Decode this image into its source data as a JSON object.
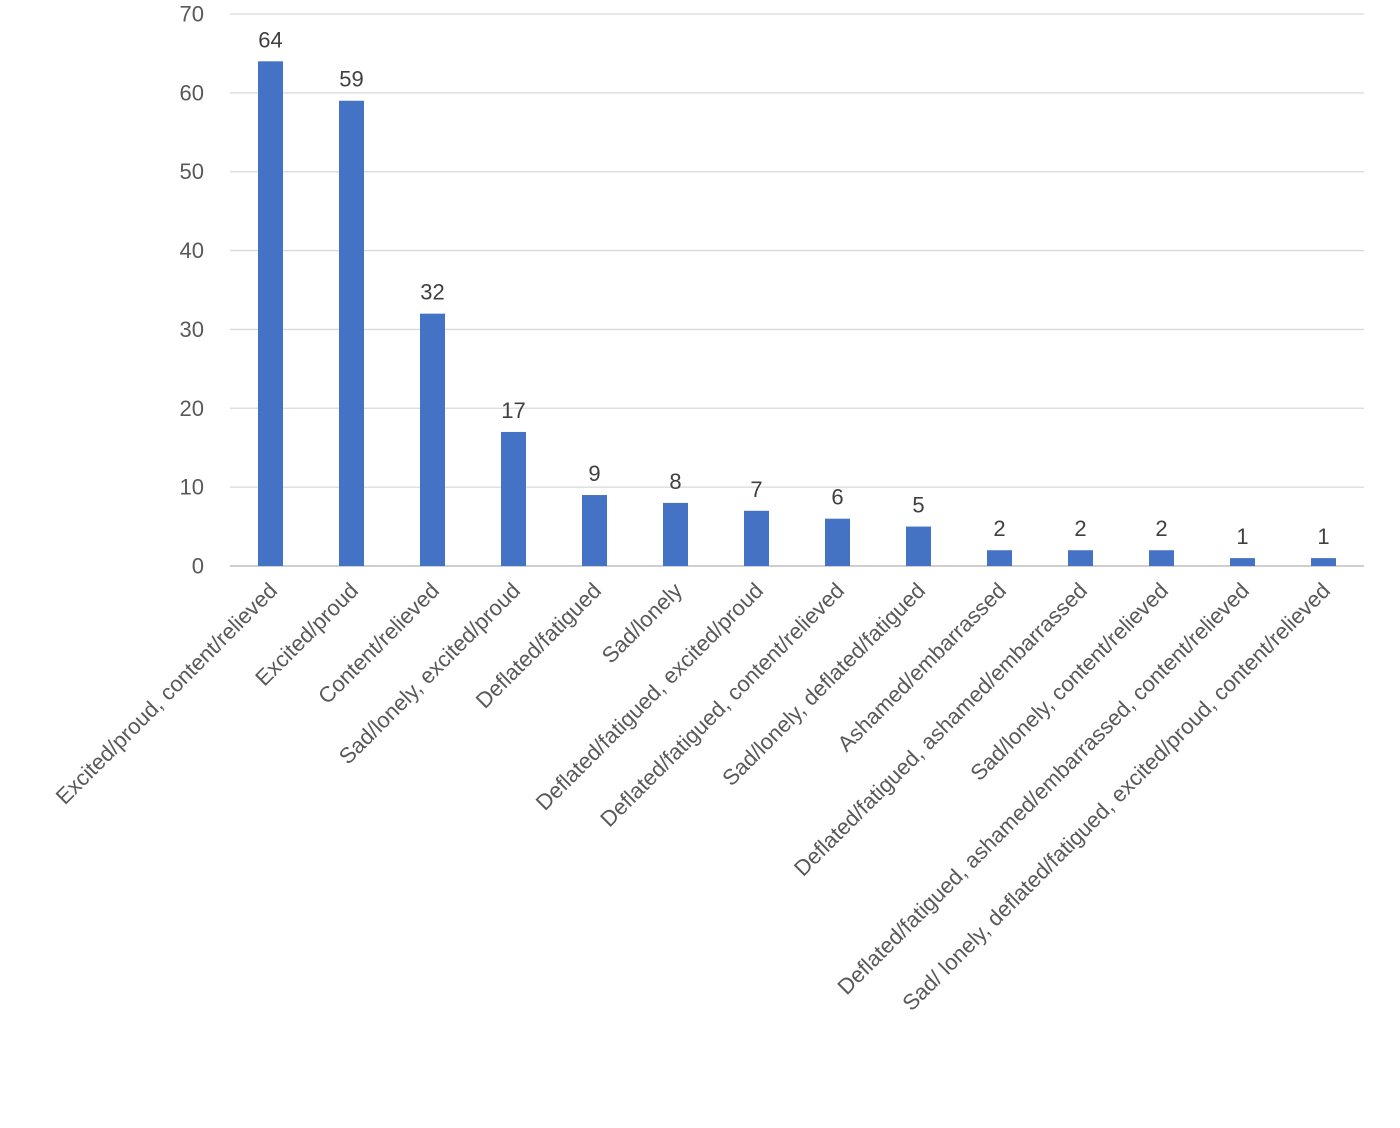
{
  "chart_data": {
    "type": "bar",
    "title": "",
    "xlabel": "",
    "ylabel": "",
    "ylim": [
      0,
      70
    ],
    "yticks": [
      0,
      10,
      20,
      30,
      40,
      50,
      60,
      70
    ],
    "grid": true,
    "legend": "none",
    "colors": {
      "bar": "#4472C4"
    },
    "categories": [
      "Excited/proud, content/relieved",
      "Excited/proud",
      "Content/relieved",
      "Sad/lonely, excited/proud",
      "Deflated/fatigued",
      "Sad/lonely",
      "Deflated/fatigued, excited/proud",
      "Deflated/fatigued, content/relieved",
      "Sad/lonely, deflated/fatigued",
      "Ashamed/embarrassed",
      "Deflated/fatigued, ashamed/embarrassed",
      "Sad/lonely, content/relieved",
      "Deflated/fatigued, ashamed/embarrassed, content/relieved",
      "Sad/ lonely, deflated/fatigued, excited/proud, content/relieved"
    ],
    "values": [
      64,
      59,
      32,
      17,
      9,
      8,
      7,
      6,
      5,
      2,
      2,
      2,
      1,
      1
    ]
  }
}
